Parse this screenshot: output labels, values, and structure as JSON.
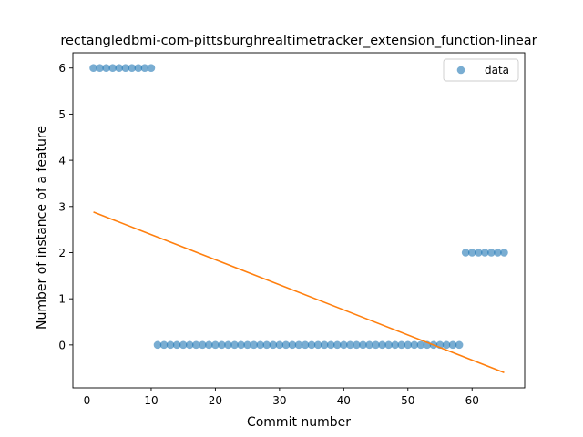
{
  "chart_data": {
    "type": "scatter",
    "title": "rectangledbmi-com-pittsburghrealtimetracker_extension_function-linear",
    "xlabel": "Commit number",
    "ylabel": "Number of instance of a feature",
    "xlim": [
      -2.2,
      68.2
    ],
    "ylim": [
      -0.93,
      6.33
    ],
    "xticks": [
      0,
      10,
      20,
      30,
      40,
      50,
      60
    ],
    "yticks": [
      0,
      1,
      2,
      3,
      4,
      5,
      6
    ],
    "grid": false,
    "legend_position": "upper right",
    "series": [
      {
        "name": "data",
        "kind": "scatter",
        "color": "#1f77b4",
        "x": [
          1,
          2,
          3,
          4,
          5,
          6,
          7,
          8,
          9,
          10,
          11,
          12,
          13,
          14,
          15,
          16,
          17,
          18,
          19,
          20,
          21,
          22,
          23,
          24,
          25,
          26,
          27,
          28,
          29,
          30,
          31,
          32,
          33,
          34,
          35,
          36,
          37,
          38,
          39,
          40,
          41,
          42,
          43,
          44,
          45,
          46,
          47,
          48,
          49,
          50,
          51,
          52,
          53,
          54,
          55,
          56,
          57,
          58,
          59,
          60,
          61,
          62,
          63,
          64,
          65
        ],
        "y": [
          6,
          6,
          6,
          6,
          6,
          6,
          6,
          6,
          6,
          6,
          0,
          0,
          0,
          0,
          0,
          0,
          0,
          0,
          0,
          0,
          0,
          0,
          0,
          0,
          0,
          0,
          0,
          0,
          0,
          0,
          0,
          0,
          0,
          0,
          0,
          0,
          0,
          0,
          0,
          0,
          0,
          0,
          0,
          0,
          0,
          0,
          0,
          0,
          0,
          0,
          0,
          0,
          0,
          0,
          0,
          0,
          0,
          0,
          2,
          2,
          2,
          2,
          2,
          2,
          2
        ]
      },
      {
        "kind": "line",
        "color": "#ff7f0e",
        "x": [
          1,
          65
        ],
        "y": [
          2.88,
          -0.6
        ]
      }
    ]
  }
}
